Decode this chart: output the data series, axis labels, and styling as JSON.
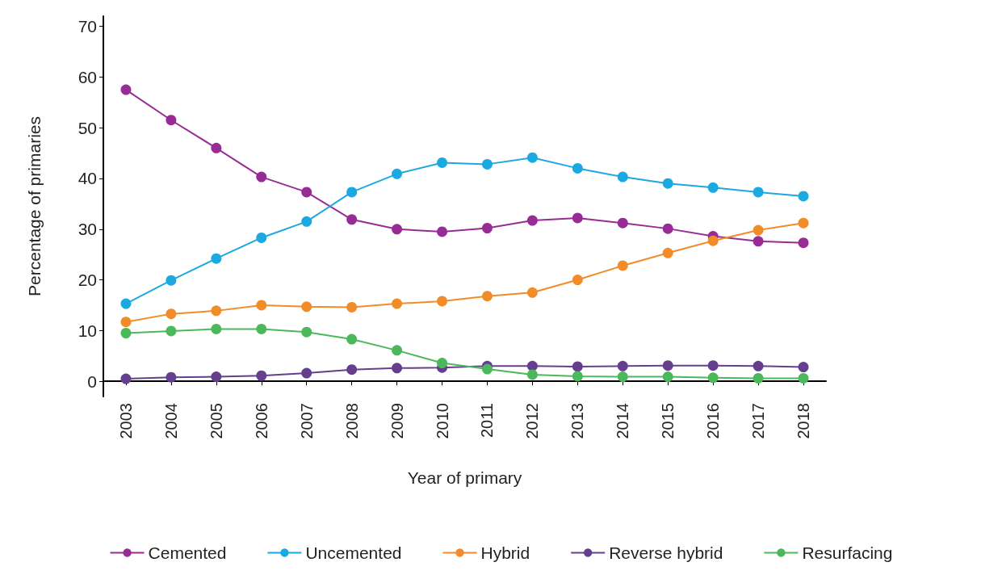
{
  "chart_data": {
    "type": "line",
    "xlabel": "Year of primary",
    "ylabel": "Percentage of primaries",
    "categories": [
      "2003",
      "2004",
      "2005",
      "2006",
      "2007",
      "2008",
      "2009",
      "2010",
      "2011",
      "2012",
      "2013",
      "2014",
      "2015",
      "2016",
      "2017",
      "2018"
    ],
    "series": [
      {
        "name": "Cemented",
        "color": "#982c96",
        "values": [
          57.5,
          51.5,
          46,
          40.3,
          37.3,
          31.9,
          30,
          29.5,
          30.2,
          31.7,
          32.2,
          31.2,
          30.1,
          28.6,
          27.6,
          27.3
        ]
      },
      {
        "name": "Uncemented",
        "color": "#1ba9e1",
        "values": [
          15.3,
          19.9,
          24.2,
          28.3,
          31.5,
          37.3,
          40.9,
          43.1,
          42.8,
          44.1,
          42,
          40.3,
          39,
          38.2,
          37.3,
          36.5
        ]
      },
      {
        "name": "Hybrid",
        "color": "#f28c28",
        "values": [
          11.7,
          13.3,
          13.9,
          15,
          14.7,
          14.6,
          15.3,
          15.8,
          16.8,
          17.5,
          20,
          22.8,
          25.3,
          27.7,
          29.8,
          31.2
        ]
      },
      {
        "name": "Reverse hybrid",
        "color": "#653f8e",
        "values": [
          0.5,
          0.8,
          0.9,
          1.1,
          1.6,
          2.3,
          2.6,
          2.7,
          3.0,
          3.0,
          2.9,
          3.0,
          3.1,
          3.1,
          3.0,
          2.8
        ]
      },
      {
        "name": "Resurfacing",
        "color": "#4cb85c",
        "values": [
          9.5,
          9.9,
          10.3,
          10.3,
          9.7,
          8.3,
          6.1,
          3.6,
          2.4,
          1.3,
          1.0,
          0.9,
          0.9,
          0.7,
          0.6,
          0.6
        ]
      }
    ],
    "ylim": [
      -3,
      72
    ],
    "yticks": [
      0,
      10,
      20,
      30,
      40,
      50,
      60,
      70
    ],
    "grid": false,
    "legend": "bottom",
    "marker": "circle"
  }
}
